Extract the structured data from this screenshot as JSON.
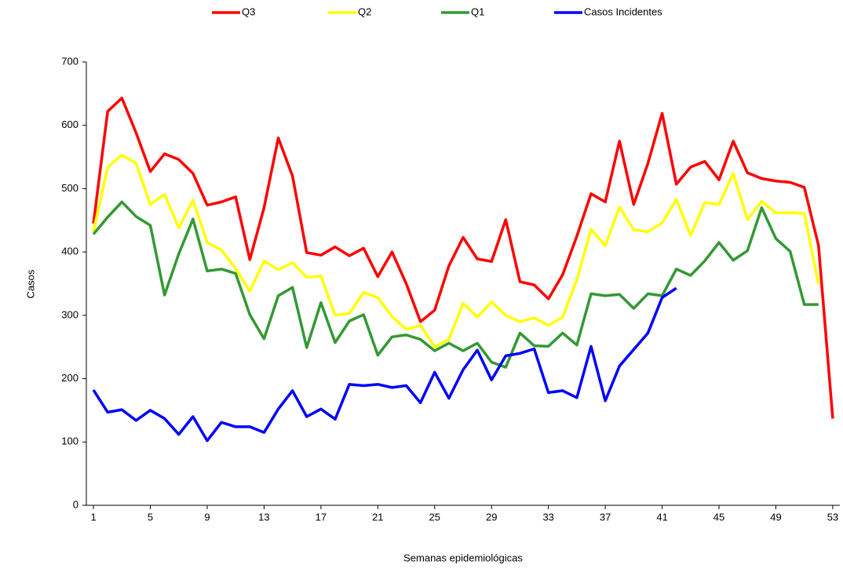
{
  "chart_data": {
    "type": "line",
    "x": [
      1,
      2,
      3,
      4,
      5,
      6,
      7,
      8,
      9,
      10,
      11,
      12,
      13,
      14,
      15,
      16,
      17,
      18,
      19,
      20,
      21,
      22,
      23,
      24,
      25,
      26,
      27,
      28,
      29,
      30,
      31,
      32,
      33,
      34,
      35,
      36,
      37,
      38,
      39,
      40,
      41,
      42,
      43,
      44,
      45,
      46,
      47,
      48,
      49,
      50,
      51,
      52,
      53
    ],
    "xlim": [
      0.5,
      53.5
    ],
    "xticks": [
      1,
      5,
      9,
      13,
      17,
      21,
      25,
      29,
      33,
      37,
      41,
      45,
      49,
      53
    ],
    "ylim": [
      0,
      700
    ],
    "yticks": [
      0,
      100,
      200,
      300,
      400,
      500,
      600,
      700
    ],
    "xlabel": "Semanas epidemiológicas",
    "ylabel": "Casos",
    "grid": false,
    "legend": "top",
    "series": [
      {
        "name": "Q3",
        "color": "#ff0000",
        "values": [
          445,
          622,
          643,
          588,
          527,
          555,
          546,
          524,
          474,
          479,
          487,
          388,
          470,
          580,
          520,
          399,
          395,
          408,
          394,
          406,
          361,
          400,
          350,
          290,
          308,
          378,
          423,
          389,
          385,
          451,
          353,
          348,
          326,
          364,
          425,
          492,
          479,
          575,
          475,
          540,
          619,
          507,
          534,
          543,
          514,
          575,
          525,
          516,
          512,
          510,
          502,
          410,
          137
        ]
      },
      {
        "name": "Q2",
        "color": "#ffff00",
        "values": [
          432,
          534,
          553,
          540,
          475,
          491,
          438,
          482,
          415,
          403,
          374,
          338,
          386,
          372,
          383,
          360,
          362,
          300,
          303,
          336,
          328,
          298,
          278,
          284,
          250,
          262,
          319,
          297,
          321,
          300,
          290,
          296,
          284,
          297,
          356,
          436,
          410,
          471,
          435,
          432,
          446,
          483,
          426,
          478,
          475,
          524,
          451,
          480,
          462,
          462,
          461,
          349,
          null
        ]
      },
      {
        "name": "Q1",
        "color": "#339933",
        "values": [
          428,
          455,
          479,
          456,
          442,
          332,
          397,
          452,
          370,
          373,
          366,
          301,
          263,
          331,
          344,
          249,
          320,
          257,
          291,
          301,
          237,
          266,
          269,
          262,
          244,
          256,
          244,
          256,
          226,
          218,
          272,
          252,
          251,
          272,
          253,
          334,
          331,
          333,
          311,
          334,
          331,
          373,
          363,
          386,
          415,
          387,
          402,
          470,
          421,
          401,
          317,
          317,
          null
        ]
      },
      {
        "name": "Casos Incidentes",
        "color": "#0000ff",
        "values": [
          182,
          147,
          151,
          134,
          150,
          137,
          112,
          140,
          102,
          131,
          124,
          124,
          115,
          152,
          181,
          140,
          152,
          136,
          191,
          189,
          191,
          186,
          189,
          162,
          210,
          169,
          214,
          245,
          198,
          236,
          240,
          247,
          178,
          181,
          170,
          251,
          165,
          220,
          246,
          272,
          328,
          343,
          null,
          null,
          null,
          null,
          null,
          null,
          null,
          null,
          null,
          null,
          null
        ]
      }
    ]
  }
}
